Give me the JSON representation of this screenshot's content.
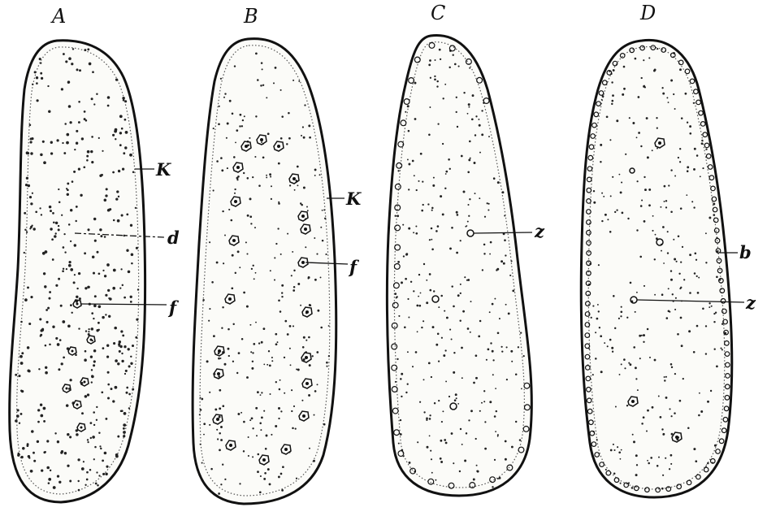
{
  "figure": {
    "panels": [
      {
        "letter": "A",
        "callouts": [
          {
            "label": "K"
          },
          {
            "label": "d"
          },
          {
            "label": "f"
          }
        ]
      },
      {
        "letter": "B",
        "callouts": [
          {
            "label": "K"
          },
          {
            "label": "f"
          }
        ]
      },
      {
        "letter": "C",
        "callouts": [
          {
            "label": "z"
          }
        ]
      },
      {
        "letter": "D",
        "callouts": [
          {
            "label": "b"
          },
          {
            "label": "z"
          }
        ]
      }
    ]
  }
}
